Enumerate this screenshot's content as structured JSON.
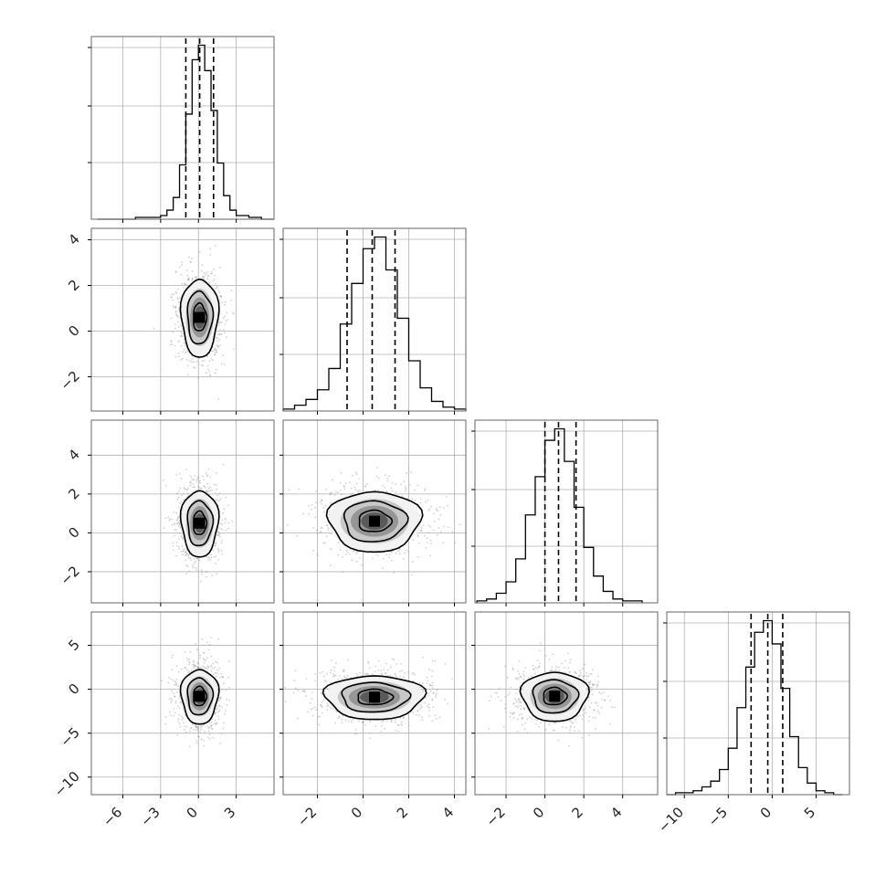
{
  "chart_data": {
    "type": "corner",
    "parameters": 4,
    "grid": true,
    "colors": {
      "frame": "#666666",
      "grid": "#b0b0b0",
      "line": "#000000",
      "scatter": "#9a9a9a",
      "density_levels": [
        "#f2f2f2",
        "#c8c8c8",
        "#969696",
        "#5a5a5a",
        "#000000"
      ]
    },
    "axis_ranges": [
      [
        -8.5,
        6.0
      ],
      [
        -3.5,
        4.5
      ],
      [
        -3.6,
        5.8
      ],
      [
        -12.0,
        8.8
      ]
    ],
    "tick_labels": [
      [
        "−6",
        "−3",
        "0",
        "3"
      ],
      [
        "−2",
        "0",
        "2",
        "4"
      ],
      [
        "−2",
        "0",
        "2",
        "4"
      ],
      [
        "−10",
        "−5",
        "0",
        "5"
      ]
    ],
    "y_tick_labels": {
      "row_2": [
        "4",
        "2",
        "0",
        "−2"
      ],
      "row_3": [
        "4",
        "2",
        "0",
        "−2"
      ],
      "row_4": [
        "5",
        "0",
        "−5",
        "−10"
      ]
    },
    "histograms": [
      {
        "parameter": 1,
        "bins": [
          -8,
          -7,
          -6,
          -5,
          -4,
          -3,
          -2.5,
          -2,
          -1.5,
          -1,
          -0.5,
          0,
          0.5,
          1,
          1.5,
          2,
          2.5,
          3,
          4,
          5,
          6
        ],
        "counts": [
          0,
          0,
          0,
          1,
          1,
          2,
          5,
          12,
          30,
          58,
          88,
          96,
          82,
          60,
          31,
          13,
          5,
          2,
          1,
          0
        ],
        "quantiles": [
          -1.0,
          0.1,
          1.2
        ]
      },
      {
        "parameter": 2,
        "bins": [
          -3.5,
          -3,
          -2.5,
          -2,
          -1.5,
          -1,
          -0.5,
          0,
          0.5,
          1,
          1.5,
          2,
          2.5,
          3,
          3.5,
          4,
          4.5
        ],
        "counts": [
          1,
          3,
          6,
          11,
          22,
          45,
          66,
          84,
          90,
          73,
          48,
          26,
          12,
          5,
          2,
          1
        ],
        "quantiles": [
          -0.7,
          0.4,
          1.4
        ]
      },
      {
        "parameter": 3,
        "bins": [
          -3.5,
          -3,
          -2.5,
          -2,
          -1.5,
          -1,
          -0.5,
          0,
          0.5,
          1,
          1.5,
          2,
          2.5,
          3,
          3.5,
          4,
          4.5,
          5
        ],
        "counts": [
          1,
          2,
          5,
          11,
          23,
          46,
          66,
          85,
          91,
          74,
          50,
          29,
          14,
          6,
          2,
          1,
          1
        ],
        "quantiles": [
          0.0,
          0.7,
          1.6
        ]
      },
      {
        "parameter": 4,
        "bins": [
          -12,
          -11,
          -10,
          -9,
          -8,
          -7,
          -6,
          -5,
          -4,
          -3,
          -2,
          -1,
          0,
          1,
          2,
          3,
          4,
          5,
          6,
          7,
          8
        ],
        "counts": [
          0,
          1,
          1,
          2,
          4,
          7,
          13,
          24,
          45,
          66,
          84,
          90,
          78,
          55,
          30,
          14,
          6,
          2,
          1,
          0
        ],
        "quantiles": [
          -2.4,
          -0.5,
          1.2
        ]
      }
    ],
    "panels_2d": [
      {
        "x_param": 1,
        "y_param": 2,
        "center": [
          0.1,
          0.6
        ],
        "spread": [
          0.95,
          1.1
        ]
      },
      {
        "x_param": 1,
        "y_param": 3,
        "center": [
          0.1,
          0.5
        ],
        "spread": [
          0.95,
          1.1
        ]
      },
      {
        "x_param": 2,
        "y_param": 3,
        "center": [
          0.5,
          0.6
        ],
        "spread": [
          1.3,
          1.0
        ]
      },
      {
        "x_param": 1,
        "y_param": 4,
        "center": [
          0.1,
          -0.8
        ],
        "spread": [
          0.95,
          2.0
        ]
      },
      {
        "x_param": 2,
        "y_param": 4,
        "center": [
          0.5,
          -0.9
        ],
        "spread": [
          1.4,
          1.6
        ]
      },
      {
        "x_param": 3,
        "y_param": 4,
        "center": [
          0.5,
          -0.8
        ],
        "spread": [
          1.1,
          1.8
        ]
      }
    ]
  }
}
